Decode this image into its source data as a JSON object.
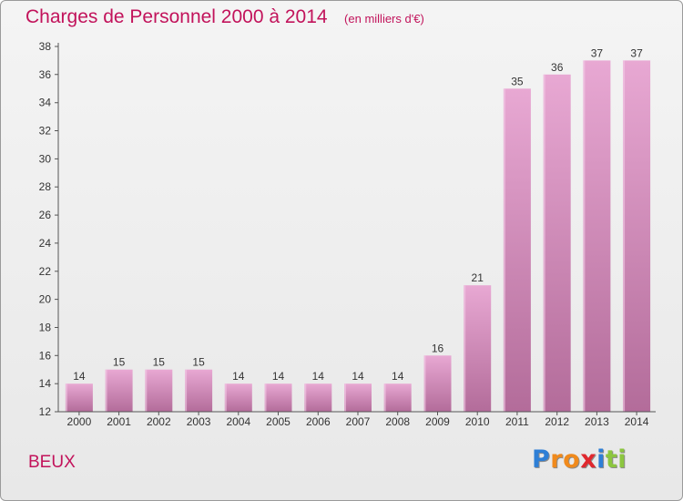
{
  "chart_data": {
    "type": "bar",
    "title": "Charges de Personnel 2000 à 2014",
    "subtitle": "(en milliers d'€)",
    "xlabel": "",
    "ylabel": "",
    "categories": [
      "2000",
      "2001",
      "2002",
      "2003",
      "2004",
      "2005",
      "2006",
      "2007",
      "2008",
      "2009",
      "2010",
      "2011",
      "2012",
      "2013",
      "2014"
    ],
    "values": [
      14,
      15,
      15,
      15,
      14,
      14,
      14,
      14,
      14,
      16,
      21,
      35,
      36,
      37,
      37
    ],
    "ylim": [
      12,
      38
    ],
    "yticks": [
      12,
      14,
      16,
      18,
      20,
      22,
      24,
      26,
      28,
      30,
      32,
      34,
      36,
      38
    ],
    "grid": false,
    "legend": "none",
    "bar_color": "#d98fbd"
  },
  "commune": "BEUX",
  "logo": {
    "text": "Proxiti",
    "letters": [
      {
        "ch": "P",
        "color": "#2e7fd6"
      },
      {
        "ch": "r",
        "color": "#f08a1c"
      },
      {
        "ch": "o",
        "color": "#f08a1c"
      },
      {
        "ch": "x",
        "color": "#e0282e"
      },
      {
        "ch": "i",
        "color": "#2e7fd6"
      },
      {
        "ch": "t",
        "color": "#8cc63f"
      },
      {
        "ch": "i",
        "color": "#8cc63f"
      }
    ]
  },
  "colors": {
    "title": "#c2135b",
    "axis": "#333333",
    "bar_top": "#e8a8d3",
    "bar_bottom": "#b36c9a"
  }
}
